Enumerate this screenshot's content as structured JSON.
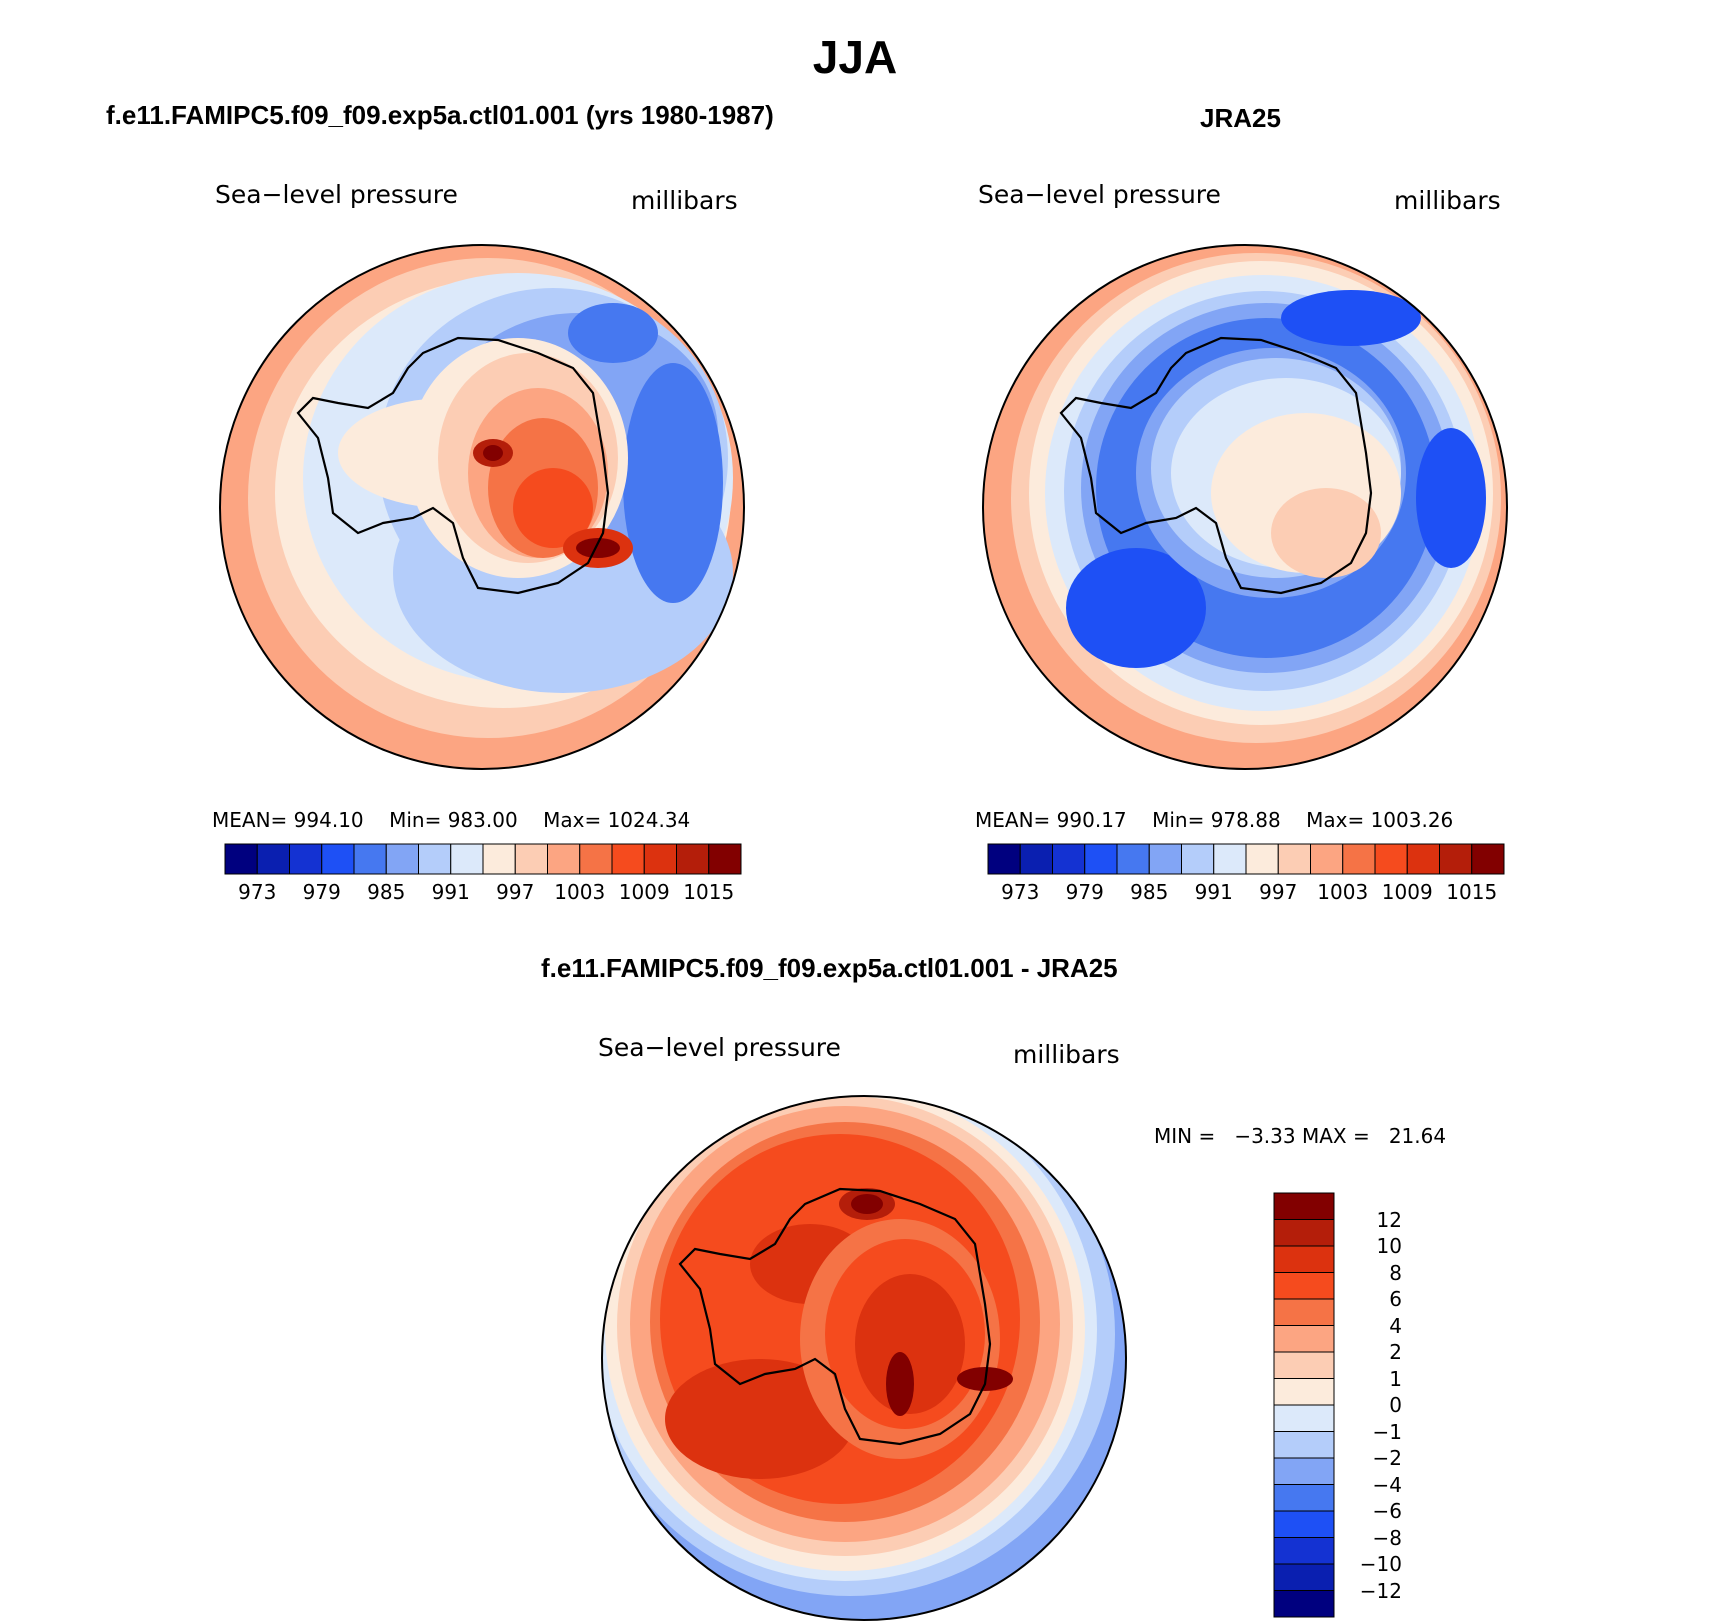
{
  "title": "JJA",
  "panels": [
    {
      "case": "f.e11.FAMIPC5.f09_f09.exp5a.ctl01.001 (yrs 1980-1987)",
      "variable": "Sea−level pressure",
      "units": "millibars",
      "stats": {
        "mean_label": "MEAN=",
        "mean": "994.10",
        "min_label": "Min=",
        "min": "983.00",
        "max_label": "Max=",
        "max": "1024.34"
      }
    },
    {
      "case": "JRA25",
      "variable": "Sea−level pressure",
      "units": "millibars",
      "stats": {
        "mean_label": "MEAN=",
        "mean": "990.17",
        "min_label": "Min=",
        "min": "978.88",
        "max_label": "Max=",
        "max": "1003.26"
      }
    },
    {
      "case": "f.e11.FAMIPC5.f09_f09.exp5a.ctl01.001 - JRA25",
      "variable": "Sea−level pressure",
      "units": "millibars",
      "stats": {
        "min_label": "MIN =",
        "min": "−3.33",
        "max_label": "MAX =",
        "max": "21.64"
      }
    }
  ],
  "abs_colorbar": {
    "colors": [
      "#00007f",
      "#0a1fb0",
      "#1432d2",
      "#1e50f5",
      "#4678f0",
      "#82a5f5",
      "#b4cdfa",
      "#dce9fa",
      "#fcebdc",
      "#fccdb4",
      "#fca582",
      "#f57346",
      "#f54b1e",
      "#dc320f",
      "#b41e0a",
      "#820000"
    ],
    "ticks": [
      "973",
      "979",
      "985",
      "991",
      "997",
      "1003",
      "1009",
      "1015"
    ]
  },
  "diff_colorbar": {
    "colors": [
      "#820000",
      "#b41e0a",
      "#dc320f",
      "#f54b1e",
      "#f57346",
      "#fca582",
      "#fccdb4",
      "#fcebdc",
      "#dce9fa",
      "#b4cdfa",
      "#82a5f5",
      "#4678f0",
      "#1e50f5",
      "#1432d2",
      "#0a1fb0",
      "#00007f"
    ],
    "ticks": [
      "12",
      "10",
      "8",
      "6",
      "4",
      "2",
      "1",
      "0",
      "−1",
      "−2",
      "−4",
      "−6",
      "−8",
      "−10",
      "−12"
    ]
  }
}
